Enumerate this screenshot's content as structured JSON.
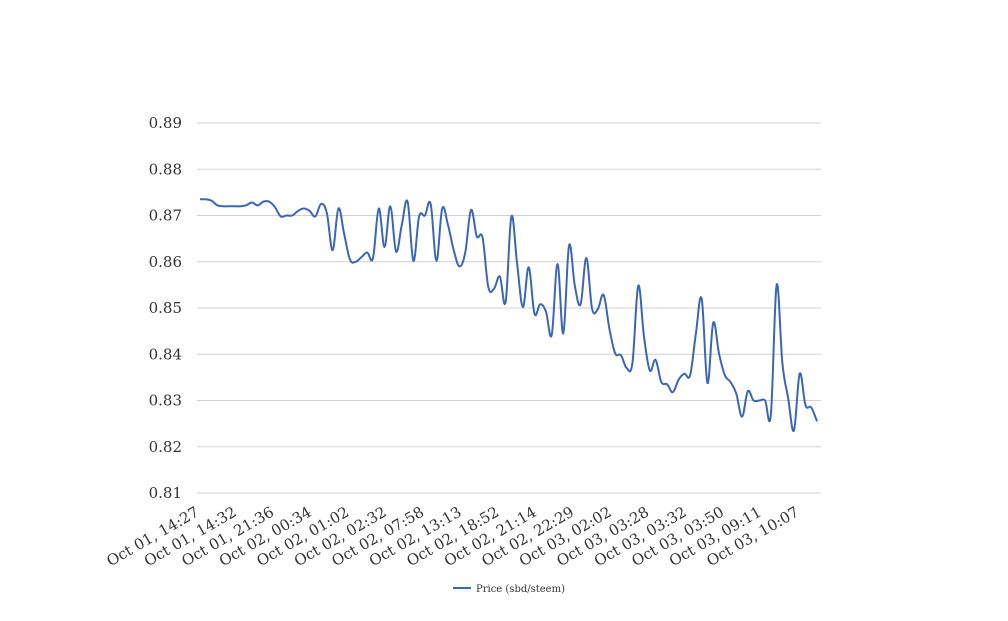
{
  "chart_data": {
    "type": "line",
    "title": "",
    "xlabel": "",
    "ylabel": "",
    "ylim": [
      0.81,
      0.89
    ],
    "yticks": [
      0.81,
      0.82,
      0.83,
      0.84,
      0.85,
      0.86,
      0.87,
      0.88,
      0.89
    ],
    "ytick_labels": [
      "0.81",
      "0.82",
      "0.83",
      "0.84",
      "0.85",
      "0.86",
      "0.87",
      "0.88",
      "0.89"
    ],
    "grid": true,
    "legend_position": "bottom-center",
    "xtick_labels": [
      "Oct 01, 14:27",
      "Oct 01, 14:32",
      "Oct 01, 21:36",
      "Oct 02, 00:34",
      "Oct 02, 01:02",
      "Oct 02, 02:32",
      "Oct 02, 07:58",
      "Oct 02, 13:13",
      "Oct 02, 18:52",
      "Oct 02, 21:14",
      "Oct 02, 22:29",
      "Oct 03, 02:02",
      "Oct 03, 03:28",
      "Oct 03, 03:32",
      "Oct 03, 03:50",
      "Oct 03, 09:11",
      "Oct 03, 10:07"
    ],
    "series": [
      {
        "name": "Price (sbd/steem)",
        "color": "#3b66b5",
        "values": [
          0.8735,
          0.8735,
          0.8732,
          0.8722,
          0.872,
          0.872,
          0.872,
          0.872,
          0.8722,
          0.8728,
          0.8722,
          0.873,
          0.873,
          0.8718,
          0.8698,
          0.87,
          0.87,
          0.871,
          0.8715,
          0.871,
          0.8698,
          0.8725,
          0.8705,
          0.8625,
          0.8715,
          0.866,
          0.8605,
          0.86,
          0.861,
          0.862,
          0.8608,
          0.8715,
          0.8632,
          0.872,
          0.8622,
          0.868,
          0.873,
          0.8602,
          0.8698,
          0.87,
          0.8725,
          0.8602,
          0.8715,
          0.868,
          0.8625,
          0.859,
          0.862,
          0.8712,
          0.8655,
          0.8652,
          0.8545,
          0.8542,
          0.8568,
          0.8513,
          0.8698,
          0.8595,
          0.8502,
          0.8588,
          0.8488,
          0.8508,
          0.8492,
          0.8442,
          0.8595,
          0.8445,
          0.8635,
          0.8548,
          0.8508,
          0.8608,
          0.8498,
          0.8498,
          0.8528,
          0.8455,
          0.8402,
          0.8398,
          0.837,
          0.8382,
          0.8548,
          0.8438,
          0.8365,
          0.8388,
          0.834,
          0.8335,
          0.8318,
          0.8345,
          0.8358,
          0.8355,
          0.8445,
          0.852,
          0.8338,
          0.8468,
          0.8402,
          0.8355,
          0.834,
          0.8315,
          0.8265,
          0.832,
          0.83,
          0.83,
          0.83,
          0.827,
          0.855,
          0.838,
          0.8305,
          0.8235,
          0.8358,
          0.829,
          0.8285,
          0.8255
        ]
      }
    ]
  }
}
